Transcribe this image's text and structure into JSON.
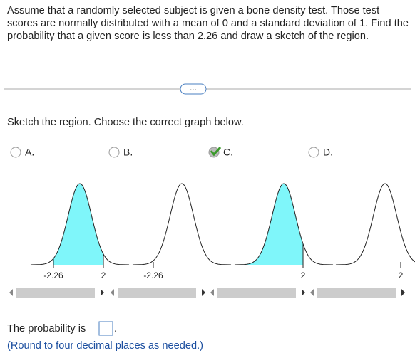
{
  "question": {
    "text": "Assume that a randomly selected subject is given a bone density test. Those test scores are normally distributed with a mean of 0 and a standard deviation of 1. Find the probability that a given score is less than 2.26 and draw a sketch of the region."
  },
  "more_button": "...",
  "prompt": "Sketch the region. Choose the correct graph below.",
  "options": [
    {
      "label": "A.",
      "tick_labels": [
        "-2.26",
        "2"
      ]
    },
    {
      "label": "B.",
      "tick_labels": [
        "-2.26"
      ]
    },
    {
      "label": "C.",
      "tick_labels": [
        "2"
      ]
    },
    {
      "label": "D.",
      "tick_labels": [
        "2"
      ]
    }
  ],
  "answer": {
    "prefix": "The probability is",
    "suffix": ".",
    "note": "(Round to four decimal places as needed.)"
  }
}
